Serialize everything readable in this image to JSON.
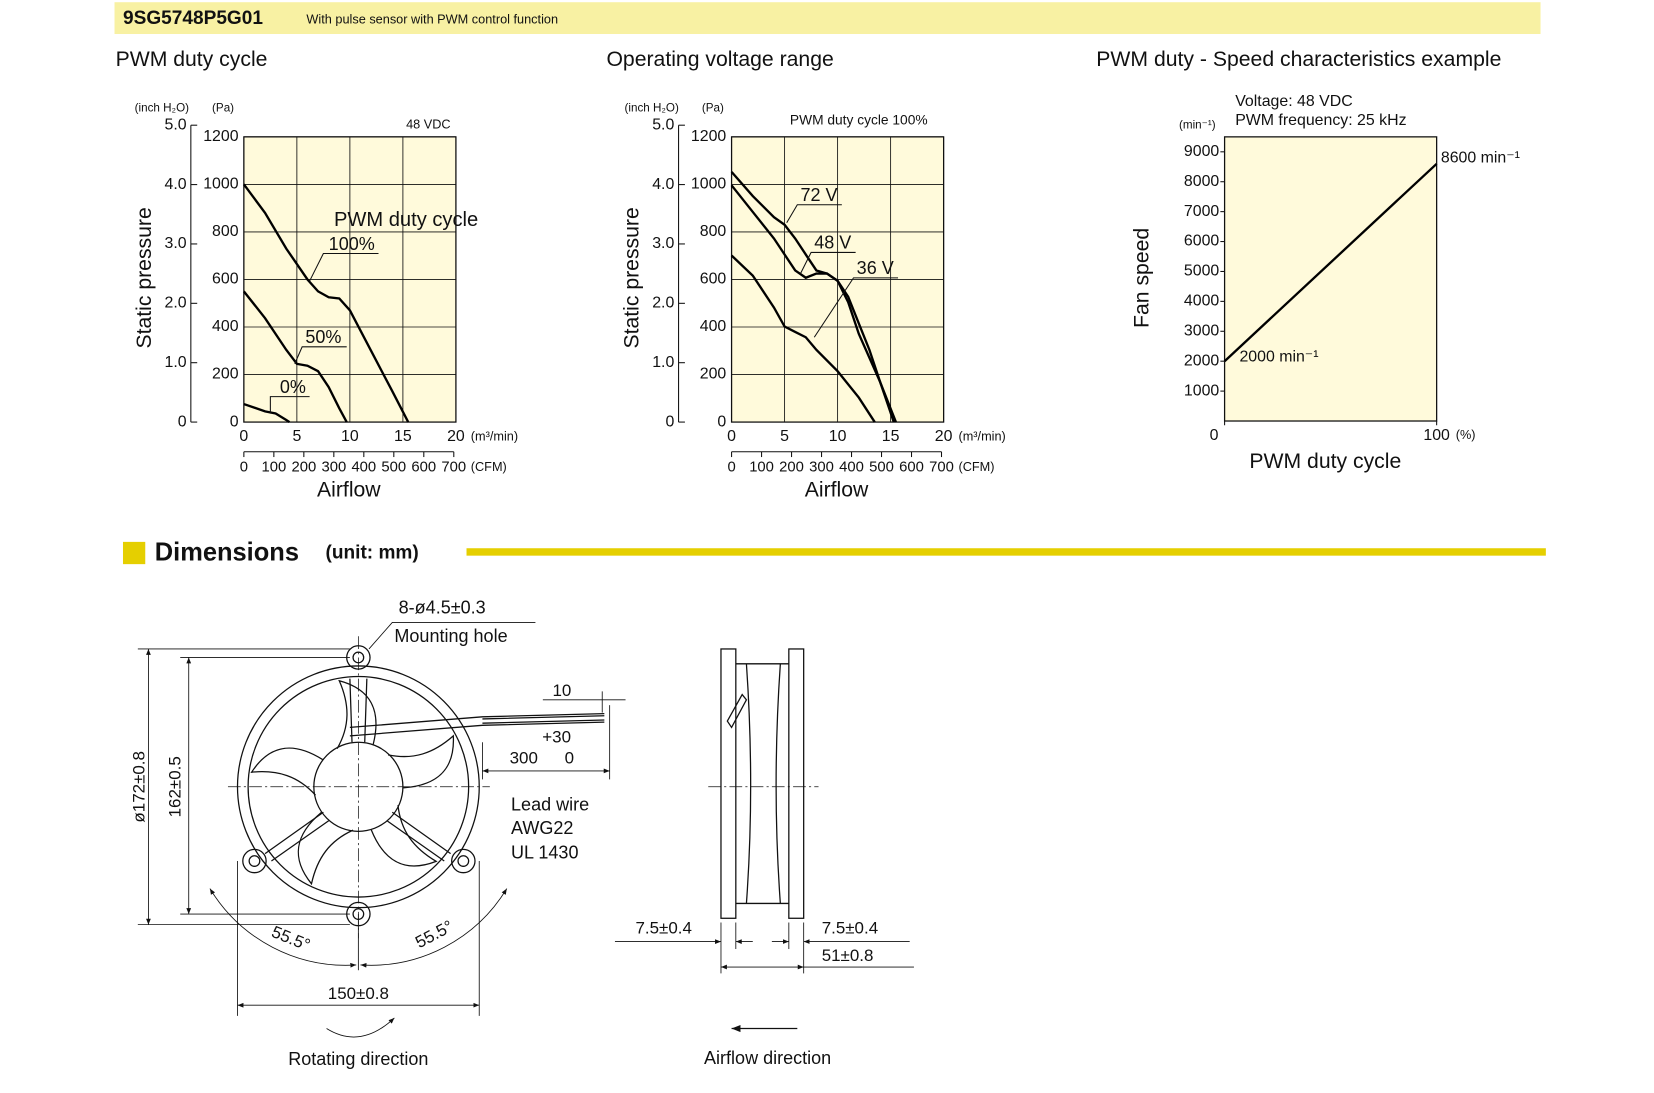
{
  "header": {
    "model": "9SG5748P5G01",
    "description": "With pulse sensor with PWM control function"
  },
  "chart_data": [
    {
      "type": "line",
      "title": "PWM duty cycle",
      "y_label": "Static pressure",
      "x_label": "Airflow",
      "y_unit": "(Pa)",
      "y2_unit": "(inch H₂O)",
      "x_unit": "(m³/min)",
      "x2_unit": "(CFM)",
      "annotations": [
        "48 VDC",
        "PWM duty cycle"
      ],
      "xlim": [
        0,
        20
      ],
      "xticks": [
        0,
        5,
        10,
        15,
        20
      ],
      "ylim": [
        0,
        1200
      ],
      "yticks": [
        0,
        200,
        400,
        600,
        800,
        1000,
        1200
      ],
      "y2lim": [
        0,
        5
      ],
      "y2ticks": [
        0,
        {
          "value": 1,
          "label": "1.0"
        },
        {
          "value": 2,
          "label": "2.0"
        },
        {
          "value": 3,
          "label": "3.0"
        },
        {
          "value": 4,
          "label": "4.0"
        },
        {
          "value": 5,
          "label": "5.0"
        }
      ],
      "x2lim": [
        0,
        700
      ],
      "x2ticks": [
        0,
        100,
        200,
        300,
        400,
        500,
        600,
        700
      ],
      "grid": true,
      "series": [
        {
          "name": "100%",
          "color": "#000000",
          "x": [
            0,
            2,
            4,
            6,
            7,
            8,
            9,
            10,
            12,
            14,
            15.5
          ],
          "values": [
            1000,
            880,
            730,
            600,
            550,
            525,
            520,
            470,
            300,
            130,
            0
          ]
        },
        {
          "name": "50%",
          "color": "#000000",
          "x": [
            0,
            2,
            4,
            5,
            6,
            7,
            8,
            9,
            9.7
          ],
          "values": [
            550,
            437,
            304,
            245,
            237,
            214,
            147,
            58,
            0
          ]
        },
        {
          "name": "0%",
          "color": "#000000",
          "x": [
            0,
            2,
            3,
            4,
            4.3
          ],
          "values": [
            76,
            45,
            36,
            9,
            0
          ]
        }
      ]
    },
    {
      "type": "line",
      "title": "Operating voltage range",
      "y_label": "Static pressure",
      "x_label": "Airflow",
      "y_unit": "(Pa)",
      "y2_unit": "(inch H₂O)",
      "x_unit": "(m³/min)",
      "x2_unit": "(CFM)",
      "annotations": [
        "PWM duty cycle 100%"
      ],
      "xlim": [
        0,
        20
      ],
      "xticks": [
        0,
        5,
        10,
        15,
        20
      ],
      "ylim": [
        0,
        1200
      ],
      "yticks": [
        0,
        200,
        400,
        600,
        800,
        1000,
        1200
      ],
      "y2lim": [
        0,
        5
      ],
      "y2ticks": [
        0,
        {
          "value": 1,
          "label": "1.0"
        },
        {
          "value": 2,
          "label": "2.0"
        },
        {
          "value": 3,
          "label": "3.0"
        },
        {
          "value": 4,
          "label": "4.0"
        },
        {
          "value": 5,
          "label": "5.0"
        }
      ],
      "x2lim": [
        0,
        700
      ],
      "x2ticks": [
        0,
        100,
        200,
        300,
        400,
        500,
        600,
        700
      ],
      "grid": true,
      "series": [
        {
          "name": "72 V",
          "color": "#000000",
          "x": [
            0,
            2,
            4,
            5,
            6,
            7,
            8,
            9,
            10,
            11,
            12,
            13,
            14,
            15.5
          ],
          "values": [
            1053,
            951,
            862,
            830,
            772,
            705,
            638,
            625,
            594,
            527,
            415,
            304,
            170,
            0
          ]
        },
        {
          "name": "48 V",
          "color": "#000000",
          "x": [
            0,
            2,
            4,
            6,
            7,
            8,
            9,
            10,
            11,
            12,
            14,
            15.3
          ],
          "values": [
            996,
            884,
            772,
            638,
            607,
            625,
            625,
            594,
            504,
            371,
            170,
            0
          ]
        },
        {
          "name": "36 V",
          "color": "#000000",
          "x": [
            0,
            2,
            4,
            5,
            6,
            7,
            8,
            10,
            12,
            13.5
          ],
          "values": [
            701,
            616,
            482,
            402,
            379,
            357,
            304,
            214,
            103,
            0
          ]
        }
      ]
    },
    {
      "type": "line",
      "title": "PWM duty - Speed characteristics example",
      "y_label": "Fan speed",
      "x_label": "PWM duty cycle",
      "y_unit": "(min⁻¹)",
      "x_unit": "(%)",
      "annotations": [
        "Voltage: 48 VDC",
        "PWM frequency: 25 kHz"
      ],
      "xlim": [
        0,
        100
      ],
      "xticks": [
        0,
        100
      ],
      "ylim": [
        0,
        9500
      ],
      "yticks": [
        1000,
        2000,
        3000,
        4000,
        5000,
        6000,
        7000,
        8000,
        9000
      ],
      "grid": false,
      "series": [
        {
          "name": null,
          "color": "#000000",
          "x": [
            0,
            100
          ],
          "values": [
            2000,
            8600
          ],
          "value_labels": [
            "2000 min⁻¹",
            "8600 min⁻¹"
          ]
        }
      ]
    }
  ],
  "dimensions": {
    "title": "Dimensions",
    "unit": "(unit: mm)",
    "front_view": {
      "hole": "8-ø4.5±0.3",
      "hole_label": "Mounting hole",
      "strip": "10",
      "lead_tol": "+30",
      "lead_length": "300",
      "lead_tol_low": "0",
      "lead_wire": [
        "Lead wire",
        "AWG22",
        "UL 1430"
      ],
      "outer_dia": "ø172±0.8",
      "pitch_v": "162±0.5",
      "angle_left": "55.5°",
      "angle_right": "55.5°",
      "pitch_h": "150±0.8",
      "rotation": "Rotating direction"
    },
    "side_view": {
      "flange_left": "7.5±0.4",
      "flange_right": "7.5±0.4",
      "depth": "51±0.8",
      "airflow": "Airflow direction"
    }
  }
}
